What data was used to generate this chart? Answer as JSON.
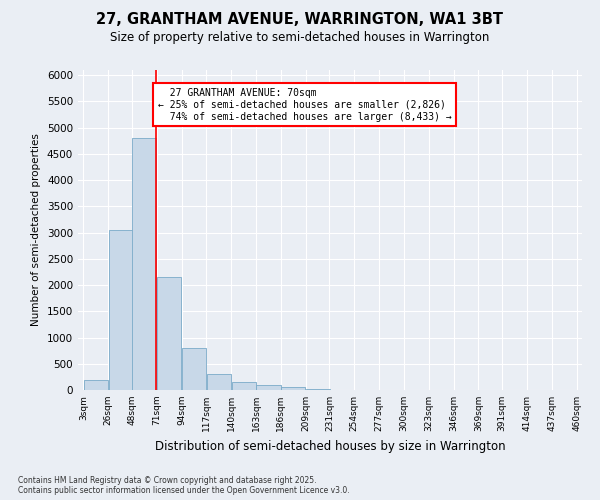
{
  "title1": "27, GRANTHAM AVENUE, WARRINGTON, WA1 3BT",
  "title2": "Size of property relative to semi-detached houses in Warrington",
  "xlabel": "Distribution of semi-detached houses by size in Warrington",
  "ylabel": "Number of semi-detached properties",
  "footnote": "Contains HM Land Registry data © Crown copyright and database right 2025.\nContains public sector information licensed under the Open Government Licence v3.0.",
  "bin_labels": [
    "3sqm",
    "26sqm",
    "48sqm",
    "71sqm",
    "94sqm",
    "117sqm",
    "140sqm",
    "163sqm",
    "186sqm",
    "209sqm",
    "231sqm",
    "254sqm",
    "277sqm",
    "300sqm",
    "323sqm",
    "346sqm",
    "369sqm",
    "391sqm",
    "414sqm",
    "437sqm",
    "460sqm"
  ],
  "bar_values": [
    200,
    3050,
    4800,
    2150,
    800,
    310,
    160,
    100,
    50,
    15,
    5,
    2,
    1,
    0,
    0,
    0,
    0,
    0,
    0,
    0
  ],
  "bar_color": "#c8d8e8",
  "bar_edge_color": "#7aaac8",
  "property_line_x": 70,
  "property_size": 70,
  "property_name": "27 GRANTHAM AVENUE: 70sqm",
  "pct_smaller": 25,
  "n_smaller": "2,826",
  "pct_larger": 74,
  "n_larger": "8,433",
  "annotation_box_color": "#ff0000",
  "ylim": [
    0,
    6100
  ],
  "yticks": [
    0,
    500,
    1000,
    1500,
    2000,
    2500,
    3000,
    3500,
    4000,
    4500,
    5000,
    5500,
    6000
  ],
  "bg_color": "#eaeef4",
  "plot_bg": "#eaeef4",
  "bin_width": 23,
  "bin_starts": [
    3,
    26,
    48,
    71,
    94,
    117,
    140,
    163,
    186,
    209,
    231,
    254,
    277,
    300,
    323,
    346,
    369,
    391,
    414,
    437
  ]
}
